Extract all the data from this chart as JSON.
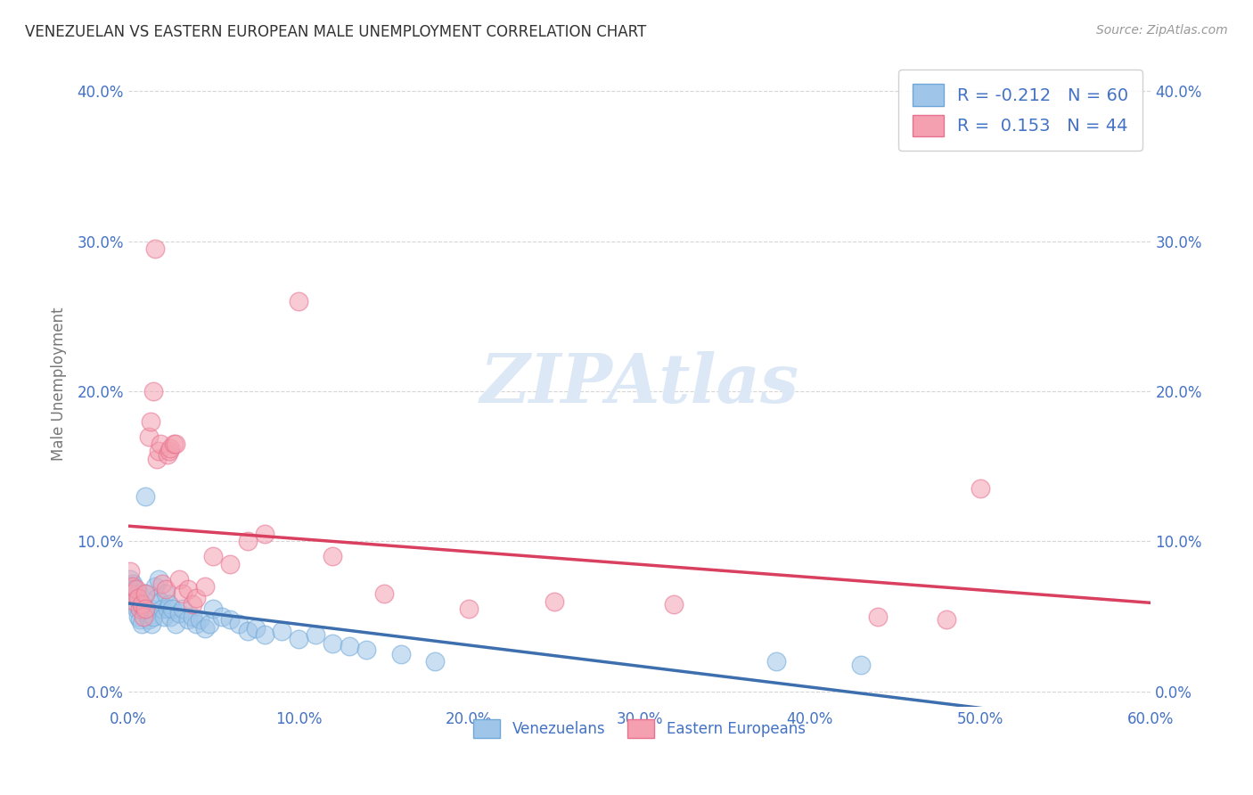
{
  "title": "VENEZUELAN VS EASTERN EUROPEAN MALE UNEMPLOYMENT CORRELATION CHART",
  "source": "Source: ZipAtlas.com",
  "ylabel": "Male Unemployment",
  "blue_color": "#9fc5e8",
  "pink_color": "#f4a0b0",
  "blue_edge_color": "#6fa8d8",
  "pink_edge_color": "#e87090",
  "blue_line_color": "#3d6faf",
  "pink_line_color": "#d94060",
  "label_color": "#4472c4",
  "title_color": "#333333",
  "source_color": "#999999",
  "watermark_color": "#dce8f5",
  "grid_color": "#cccccc",
  "xlim": [
    0.0,
    0.6
  ],
  "ylim": [
    -0.01,
    0.42
  ],
  "yticks": [
    0.0,
    0.1,
    0.2,
    0.3,
    0.4
  ],
  "xticks": [
    0.0,
    0.1,
    0.2,
    0.3,
    0.4,
    0.5,
    0.6
  ],
  "r_blue": "-0.212",
  "n_blue": "60",
  "r_pink": "0.153",
  "n_pink": "44",
  "venezuelan_x": [
    0.001,
    0.002,
    0.002,
    0.003,
    0.003,
    0.004,
    0.004,
    0.005,
    0.005,
    0.006,
    0.006,
    0.007,
    0.007,
    0.008,
    0.008,
    0.009,
    0.01,
    0.01,
    0.011,
    0.012,
    0.013,
    0.014,
    0.015,
    0.016,
    0.017,
    0.018,
    0.019,
    0.02,
    0.021,
    0.022,
    0.023,
    0.024,
    0.025,
    0.026,
    0.028,
    0.03,
    0.032,
    0.035,
    0.038,
    0.04,
    0.042,
    0.045,
    0.048,
    0.05,
    0.055,
    0.06,
    0.065,
    0.07,
    0.075,
    0.08,
    0.09,
    0.1,
    0.11,
    0.12,
    0.13,
    0.14,
    0.16,
    0.18,
    0.38,
    0.43
  ],
  "venezuelan_y": [
    0.075,
    0.065,
    0.07,
    0.06,
    0.072,
    0.068,
    0.058,
    0.065,
    0.055,
    0.063,
    0.05,
    0.06,
    0.048,
    0.058,
    0.045,
    0.055,
    0.13,
    0.065,
    0.052,
    0.048,
    0.055,
    0.045,
    0.05,
    0.07,
    0.062,
    0.075,
    0.06,
    0.055,
    0.05,
    0.065,
    0.055,
    0.058,
    0.05,
    0.055,
    0.045,
    0.052,
    0.055,
    0.048,
    0.05,
    0.045,
    0.048,
    0.042,
    0.045,
    0.055,
    0.05,
    0.048,
    0.045,
    0.04,
    0.042,
    0.038,
    0.04,
    0.035,
    0.038,
    0.032,
    0.03,
    0.028,
    0.025,
    0.02,
    0.02,
    0.018
  ],
  "eastern_x": [
    0.001,
    0.002,
    0.003,
    0.004,
    0.005,
    0.006,
    0.007,
    0.008,
    0.009,
    0.01,
    0.01,
    0.012,
    0.013,
    0.015,
    0.016,
    0.017,
    0.018,
    0.019,
    0.02,
    0.022,
    0.023,
    0.024,
    0.025,
    0.027,
    0.028,
    0.03,
    0.032,
    0.035,
    0.038,
    0.04,
    0.045,
    0.05,
    0.06,
    0.07,
    0.08,
    0.1,
    0.12,
    0.15,
    0.2,
    0.25,
    0.32,
    0.44,
    0.48,
    0.5
  ],
  "eastern_y": [
    0.08,
    0.065,
    0.07,
    0.06,
    0.068,
    0.062,
    0.055,
    0.058,
    0.05,
    0.065,
    0.055,
    0.17,
    0.18,
    0.2,
    0.295,
    0.155,
    0.16,
    0.165,
    0.072,
    0.068,
    0.158,
    0.16,
    0.162,
    0.165,
    0.165,
    0.075,
    0.065,
    0.068,
    0.058,
    0.062,
    0.07,
    0.09,
    0.085,
    0.1,
    0.105,
    0.26,
    0.09,
    0.065,
    0.055,
    0.06,
    0.058,
    0.05,
    0.048,
    0.135
  ]
}
